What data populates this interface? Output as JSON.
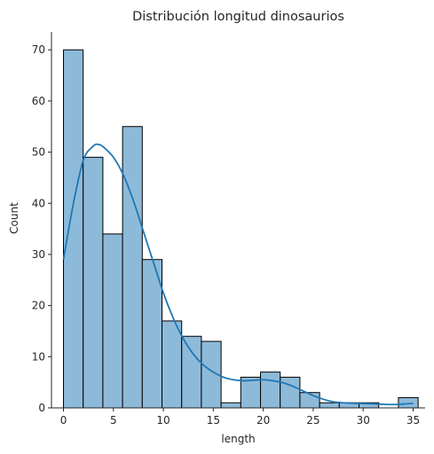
{
  "chart_data": {
    "type": "bar",
    "title": "Distribución longitud dinosaurios",
    "xlabel": "length",
    "ylabel": "Count",
    "xlim": [
      -1.2,
      36.2
    ],
    "ylim": [
      0,
      73.5
    ],
    "xticks": [
      0,
      5,
      10,
      15,
      20,
      25,
      30,
      35
    ],
    "yticks": [
      0,
      10,
      20,
      30,
      40,
      50,
      60,
      70
    ],
    "grid": false,
    "bin_edges": [
      0.0,
      1.9722,
      3.9444,
      5.9167,
      7.8889,
      9.8611,
      11.8333,
      13.8056,
      15.7778,
      17.75,
      19.7222,
      21.6944,
      23.6667,
      25.6389,
      27.6111,
      29.5833,
      31.5556,
      33.5278,
      35.5
    ],
    "values": [
      70,
      49,
      34,
      55,
      29,
      17,
      14,
      13,
      1,
      6,
      7,
      6,
      3,
      1,
      1,
      1,
      0,
      2
    ],
    "kde": {
      "x": [
        0.0,
        1.0,
        2.0,
        3.0,
        3.5,
        4.0,
        5.0,
        6.0,
        7.0,
        8.0,
        9.0,
        10.0,
        11.0,
        12.0,
        13.0,
        14.0,
        15.0,
        16.0,
        17.0,
        18.0,
        19.0,
        20.0,
        21.0,
        22.0,
        23.0,
        24.0,
        25.0,
        26.0,
        27.0,
        28.0,
        29.0,
        30.0,
        31.0,
        32.0,
        33.0,
        34.0,
        35.0
      ],
      "y": [
        29,
        40,
        48.5,
        51.2,
        51.5,
        51.0,
        49.0,
        45.5,
        40.5,
        34.5,
        28.5,
        22.5,
        17.5,
        13.5,
        10.5,
        8.4,
        7.0,
        6.0,
        5.5,
        5.3,
        5.4,
        5.5,
        5.3,
        4.9,
        4.2,
        3.3,
        2.4,
        1.7,
        1.2,
        1.0,
        0.9,
        0.85,
        0.8,
        0.7,
        0.65,
        0.75,
        0.9
      ]
    },
    "colors": {
      "bar_fill": "#8ebad9",
      "bar_edge": "#000000",
      "kde_line": "#1f77b4",
      "axis": "#262626"
    }
  }
}
